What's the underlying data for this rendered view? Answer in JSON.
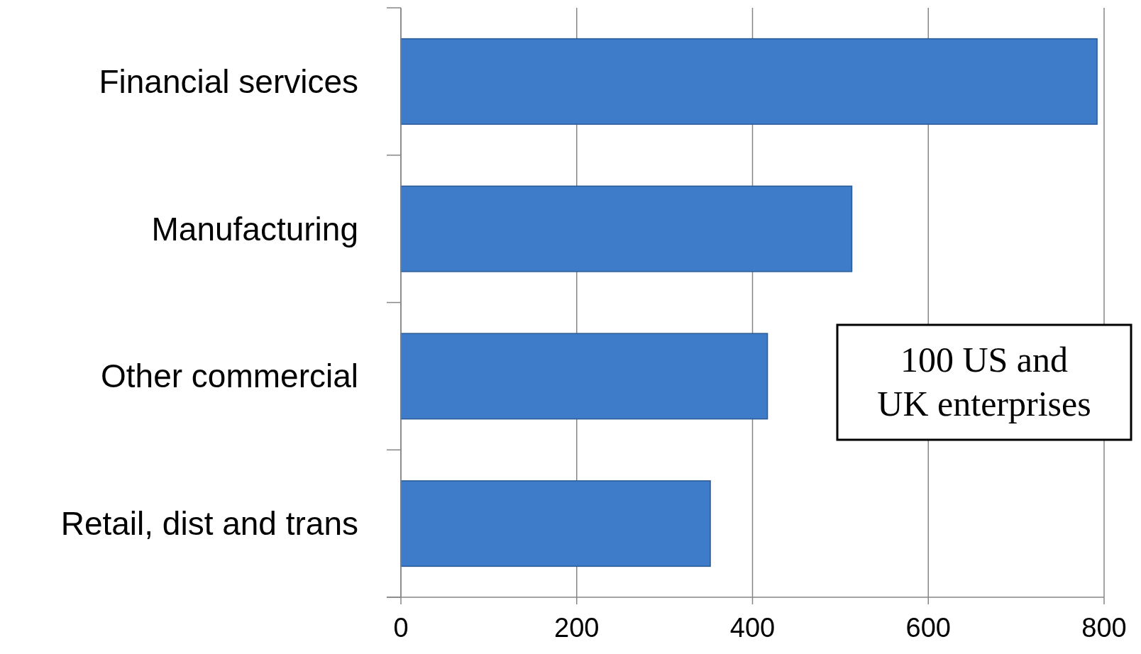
{
  "chart_data": {
    "type": "bar",
    "orientation": "horizontal",
    "categories": [
      "Financial services",
      "Manufacturing",
      "Other commercial",
      "Retail, dist and trans"
    ],
    "values": [
      792,
      513,
      417,
      352
    ],
    "color": "#3e7cc9",
    "xlim": [
      0,
      800
    ],
    "xticks": [
      0,
      200,
      400,
      600,
      800
    ],
    "grid": "x",
    "annotations": [
      "100 US and UK enterprises"
    ]
  }
}
